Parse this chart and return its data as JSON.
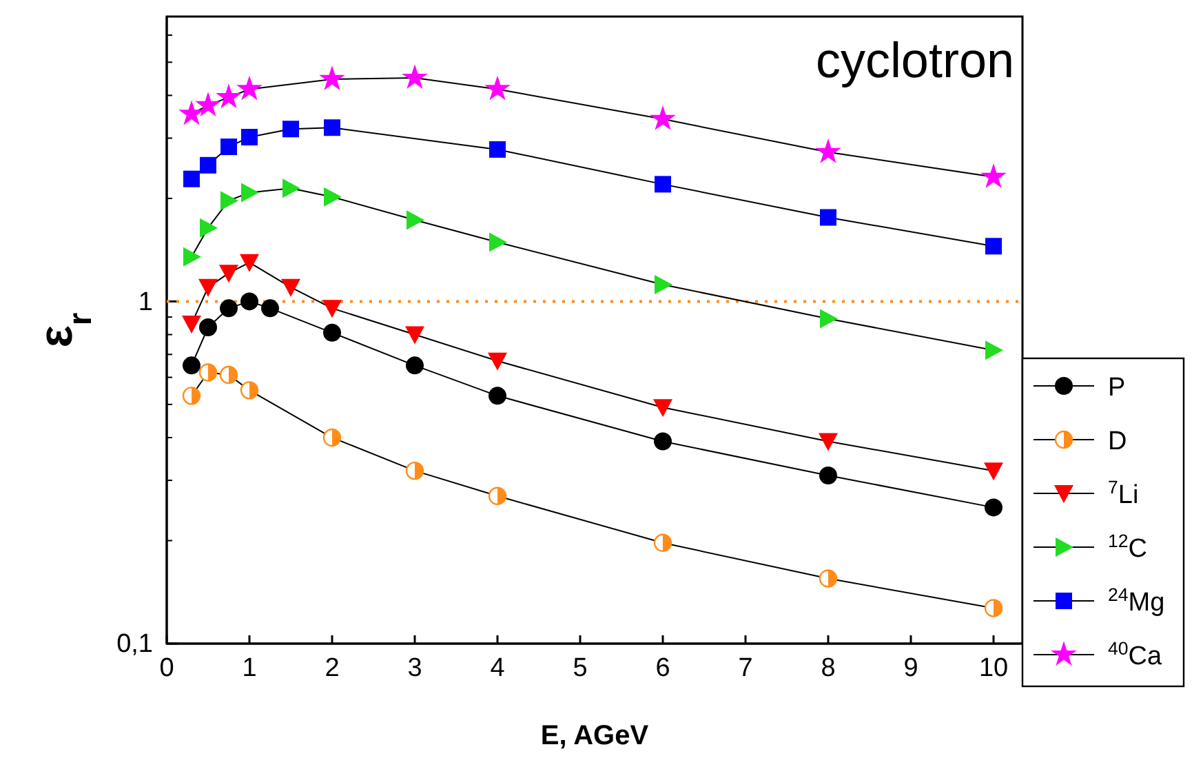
{
  "chart_data": {
    "type": "line",
    "xlabel": "E, AGeV",
    "ylabel": "ε$_{r}$",
    "log": "y",
    "xlim": [
      0,
      10.35
    ],
    "xticks": [
      0,
      1,
      2,
      3,
      4,
      5,
      6,
      7,
      8,
      9,
      10
    ],
    "ylim": [
      0.1,
      6.8
    ],
    "yticks": [
      {
        "value": 0.1,
        "label": "0,1"
      },
      1
    ],
    "legend": "right",
    "grid": false,
    "annotations": [
      "cyclotron"
    ],
    "ref_lines": [
      {
        "axis": "y",
        "value": 1,
        "label": null,
        "color": "#ff8c1a",
        "line_style": "dotted"
      }
    ],
    "series": [
      {
        "name": "P",
        "color": "#000000",
        "marker": "circle",
        "x": [
          0.3,
          0.5,
          0.75,
          1,
          1.25,
          2,
          3,
          4,
          6,
          8,
          10
        ],
        "values": [
          0.65,
          0.84,
          0.955,
          1.0,
          0.955,
          0.81,
          0.65,
          0.53,
          0.39,
          0.31,
          0.25
        ]
      },
      {
        "name": "D",
        "color": "#ff8c1a",
        "marker": "half-circle",
        "x": [
          0.3,
          0.5,
          0.75,
          1,
          2,
          3,
          4,
          6,
          8,
          10
        ],
        "values": [
          0.53,
          0.62,
          0.61,
          0.55,
          0.4,
          0.32,
          0.27,
          0.197,
          0.155,
          0.127
        ]
      },
      {
        "name": "$^{7}$Li",
        "color": "#ff0000",
        "marker": "triangle-down",
        "x": [
          0.3,
          0.5,
          0.75,
          1,
          1.5,
          2,
          3,
          4,
          6,
          8,
          10
        ],
        "values": [
          0.86,
          1.1,
          1.21,
          1.3,
          1.1,
          0.955,
          0.8,
          0.67,
          0.49,
          0.39,
          0.32
        ]
      },
      {
        "name": "$^{12}$C",
        "color": "#22dd22",
        "marker": "triangle-right",
        "x": [
          0.3,
          0.5,
          0.75,
          1,
          1.5,
          2,
          3,
          4,
          6,
          8,
          10
        ],
        "values": [
          1.35,
          1.64,
          1.97,
          2.08,
          2.14,
          2.02,
          1.73,
          1.49,
          1.12,
          0.89,
          0.72
        ]
      },
      {
        "name": "$^{24}$Mg",
        "color": "#0000ff",
        "marker": "square",
        "x": [
          0.3,
          0.5,
          0.75,
          1,
          1.5,
          2,
          4,
          6,
          8,
          10
        ],
        "values": [
          2.28,
          2.5,
          2.83,
          3.02,
          3.19,
          3.22,
          2.78,
          2.2,
          1.76,
          1.45
        ]
      },
      {
        "name": "$^{40}$Ca",
        "color": "#ff00ff",
        "marker": "star",
        "x": [
          0.3,
          0.5,
          0.75,
          1,
          2,
          3,
          4,
          6,
          8,
          10
        ],
        "values": [
          3.53,
          3.74,
          3.95,
          4.17,
          4.46,
          4.5,
          4.17,
          3.41,
          2.73,
          2.31
        ]
      }
    ]
  }
}
